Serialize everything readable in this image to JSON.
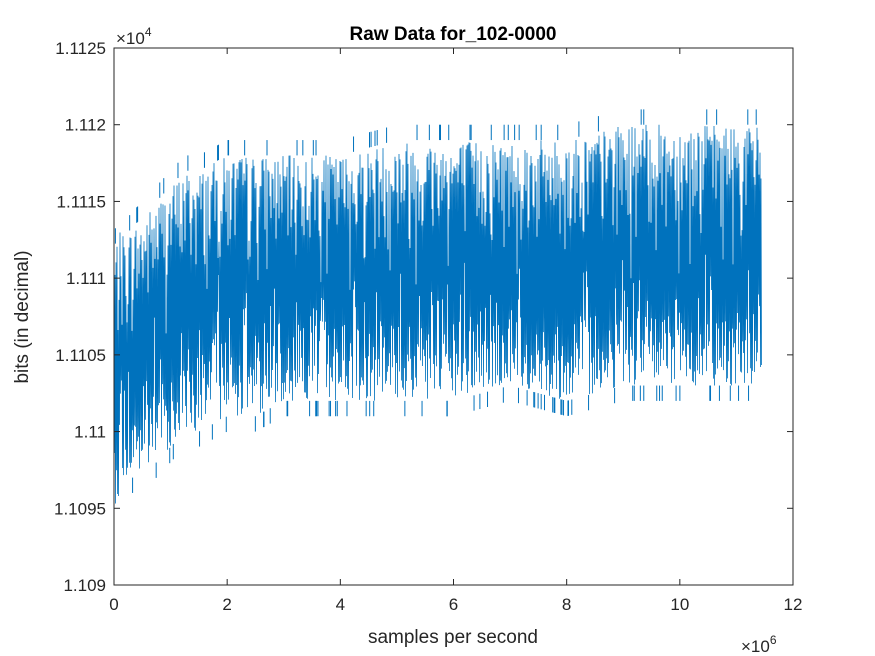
{
  "chart_data": {
    "type": "line",
    "title": "Raw Data for_102-0000",
    "xlabel": "samples per second",
    "ylabel": "bits (in decimal)",
    "xlim": [
      0,
      12
    ],
    "ylim": [
      1.109,
      1.1125
    ],
    "x_ticks": [
      0,
      2,
      4,
      6,
      8,
      10,
      12
    ],
    "x_tick_labels": [
      "0",
      "2",
      "4",
      "6",
      "8",
      "10",
      "12"
    ],
    "y_ticks": [
      1.109,
      1.1095,
      1.11,
      1.1105,
      1.111,
      1.1115,
      1.112,
      1.1125
    ],
    "y_tick_labels": [
      "1.109",
      "1.1095",
      "1.11",
      "1.1105",
      "1.111",
      "1.1115",
      "1.112",
      "1.1125"
    ],
    "x_multiplier": {
      "base": "×10",
      "exponent": "6"
    },
    "y_multiplier": {
      "base": "×10",
      "exponent": "4"
    },
    "grid": false,
    "color": "#0072BD",
    "series": [
      {
        "x_end": 11.45,
        "envelope": {
          "x": [
            0,
            0.1,
            0.25,
            0.5,
            0.75,
            1.0,
            1.25,
            1.5,
            2.0,
            2.5,
            3.0,
            4.0,
            5.0,
            6.0,
            7.0,
            8.0,
            9.0,
            10.0,
            11.0,
            11.45
          ],
          "upper": [
            1.1112,
            1.1113,
            1.1113,
            1.1114,
            1.1115,
            1.1116,
            1.1117,
            1.1117,
            1.1118,
            1.1118,
            1.1118,
            1.1118,
            1.1119,
            1.1119,
            1.1119,
            1.1119,
            1.112,
            1.112,
            1.112,
            1.112
          ],
          "lower": [
            1.1095,
            1.1096,
            1.1097,
            1.1097,
            1.1098,
            1.1099,
            1.11,
            1.11,
            1.1101,
            1.1101,
            1.1102,
            1.1102,
            1.1102,
            1.1102,
            1.1103,
            1.1102,
            1.1103,
            1.1103,
            1.1103,
            1.1103
          ]
        }
      }
    ]
  }
}
